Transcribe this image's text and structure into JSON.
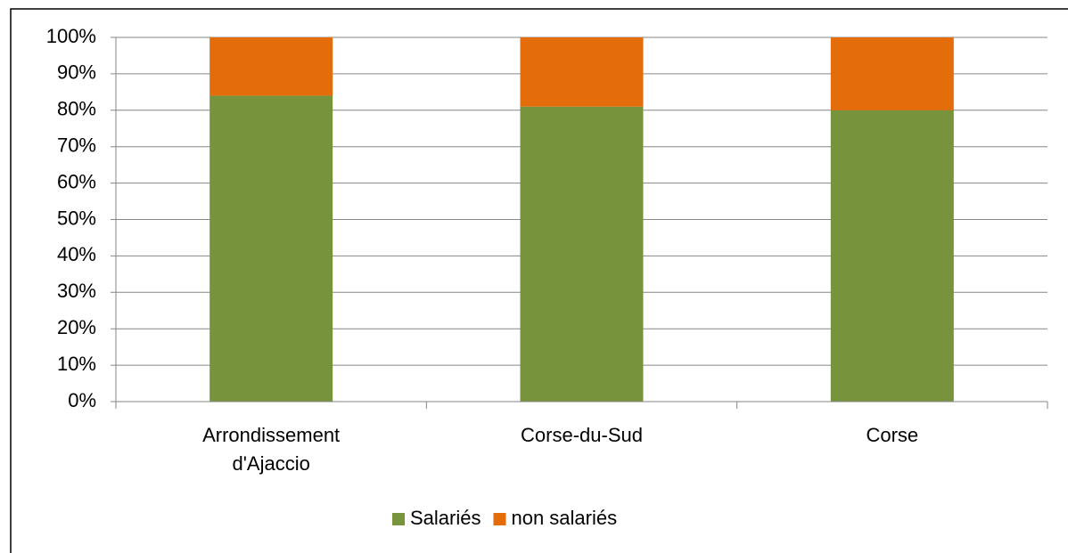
{
  "chart_data": {
    "type": "stacked_bar",
    "categories": [
      "Arrondissement d'Ajaccio",
      "Corse-du-Sud",
      "Corse"
    ],
    "series": [
      {
        "name": "Salariés",
        "color": "#77933c",
        "values": [
          84,
          81,
          80
        ]
      },
      {
        "name": "non salariés",
        "color": "#e46c0a",
        "values": [
          16,
          19,
          20
        ]
      }
    ],
    "ylim": [
      0,
      100
    ],
    "yticks": [
      {
        "value": 0,
        "label": "0%"
      },
      {
        "value": 10,
        "label": "10%"
      },
      {
        "value": 20,
        "label": "20%"
      },
      {
        "value": 30,
        "label": "30%"
      },
      {
        "value": 40,
        "label": "40%"
      },
      {
        "value": 50,
        "label": "50%"
      },
      {
        "value": 60,
        "label": "60%"
      },
      {
        "value": 70,
        "label": "70%"
      },
      {
        "value": 80,
        "label": "80%"
      },
      {
        "value": 90,
        "label": "90%"
      },
      {
        "value": 100,
        "label": "100%"
      }
    ],
    "grid": true,
    "legend": "bottom"
  }
}
